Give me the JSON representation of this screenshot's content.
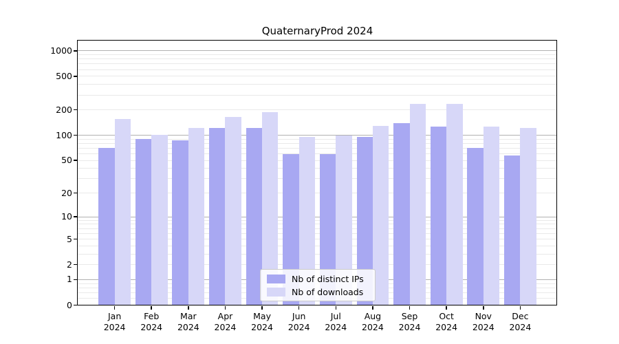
{
  "figure": {
    "title": "QuaternaryProd 2024"
  },
  "chart_data": {
    "type": "bar",
    "title": "QuaternaryProd 2024",
    "xlabel": "",
    "ylabel": "",
    "x_categories": [
      "Jan 2024",
      "Feb 2024",
      "Mar 2024",
      "Apr 2024",
      "May 2024",
      "Jun 2024",
      "Jul 2024",
      "Aug 2024",
      "Sep 2024",
      "Oct 2024",
      "Nov 2024",
      "Dec 2024"
    ],
    "series": [
      {
        "name": "Nb of distinct IPs",
        "color": "#a8a8f2",
        "values": [
          70,
          90,
          87,
          121,
          123,
          60,
          60,
          96,
          139,
          126,
          70,
          57
        ]
      },
      {
        "name": "Nb of downloads",
        "color": "#d7d7f8",
        "values": [
          157,
          101,
          121,
          165,
          189,
          96,
          100,
          128,
          234,
          234,
          127,
          122
        ]
      }
    ],
    "yscale": "log1p",
    "ylim": [
      0,
      1320
    ],
    "y_ticks_labeled": [
      0,
      1,
      2,
      5,
      10,
      20,
      50,
      100,
      200,
      500,
      1000
    ],
    "y_gridlines_major": [
      1,
      10,
      100,
      1000
    ],
    "y_gridlines_minor": [
      0.2,
      0.4,
      0.6,
      0.8,
      2,
      3,
      4,
      5,
      6,
      7,
      8,
      9,
      20,
      30,
      40,
      50,
      60,
      70,
      80,
      90,
      200,
      300,
      400,
      500,
      600,
      700,
      800,
      900
    ],
    "grid": true,
    "legend_position": "lower center",
    "colors": {
      "grid_major": "#b0b0b0",
      "grid_minor": "#e9e9e9",
      "axis": "#000000",
      "background": "#ffffff",
      "legend_border": "#cbcbcb"
    }
  }
}
